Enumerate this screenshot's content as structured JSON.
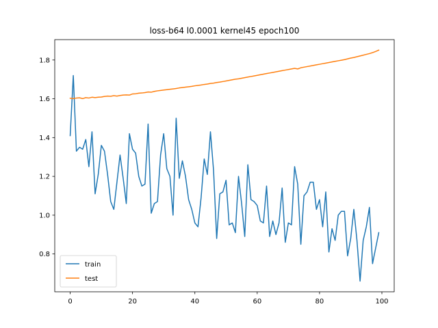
{
  "chart_data": {
    "type": "line",
    "title": "loss-b64 l0.0001 kernel45 epoch100",
    "xlabel": "",
    "ylabel": "",
    "xlim": [
      -4.95,
      103.95
    ],
    "ylim": [
      0.605,
      1.905
    ],
    "xticks": [
      0,
      20,
      40,
      60,
      80,
      100
    ],
    "yticks": [
      0.8,
      1.0,
      1.2,
      1.4,
      1.6,
      1.8
    ],
    "ytick_labels": [
      "0.8",
      "1.0",
      "1.2",
      "1.4",
      "1.6",
      "1.8"
    ],
    "grid": false,
    "legend": "lower-left",
    "x": [
      0,
      1,
      2,
      3,
      4,
      5,
      6,
      7,
      8,
      9,
      10,
      11,
      12,
      13,
      14,
      15,
      16,
      17,
      18,
      19,
      20,
      21,
      22,
      23,
      24,
      25,
      26,
      27,
      28,
      29,
      30,
      31,
      32,
      33,
      34,
      35,
      36,
      37,
      38,
      39,
      40,
      41,
      42,
      43,
      44,
      45,
      46,
      47,
      48,
      49,
      50,
      51,
      52,
      53,
      54,
      55,
      56,
      57,
      58,
      59,
      60,
      61,
      62,
      63,
      64,
      65,
      66,
      67,
      68,
      69,
      70,
      71,
      72,
      73,
      74,
      75,
      76,
      77,
      78,
      79,
      80,
      81,
      82,
      83,
      84,
      85,
      86,
      87,
      88,
      89,
      90,
      91,
      92,
      93,
      94,
      95,
      96,
      97,
      98,
      99
    ],
    "series": [
      {
        "name": "train",
        "color": "#1f77b4",
        "values": [
          1.41,
          1.72,
          1.33,
          1.35,
          1.34,
          1.39,
          1.25,
          1.43,
          1.11,
          1.21,
          1.36,
          1.33,
          1.21,
          1.07,
          1.03,
          1.17,
          1.31,
          1.19,
          1.06,
          1.42,
          1.34,
          1.32,
          1.2,
          1.15,
          1.16,
          1.47,
          1.01,
          1.06,
          1.07,
          1.31,
          1.42,
          1.24,
          1.2,
          1.0,
          1.5,
          1.19,
          1.28,
          1.2,
          1.08,
          1.03,
          0.96,
          0.94,
          1.09,
          1.29,
          1.21,
          1.43,
          1.23,
          0.88,
          1.11,
          1.12,
          1.18,
          0.95,
          0.96,
          0.91,
          1.2,
          1.06,
          0.89,
          1.26,
          1.08,
          1.07,
          1.05,
          0.97,
          0.96,
          1.15,
          0.89,
          0.97,
          0.9,
          0.96,
          1.14,
          0.86,
          0.96,
          0.95,
          1.25,
          1.16,
          0.85,
          1.1,
          1.12,
          1.17,
          1.17,
          1.03,
          1.08,
          0.94,
          1.12,
          0.81,
          0.93,
          0.87,
          1.0,
          1.02,
          1.02,
          0.79,
          0.88,
          1.03,
          0.87,
          0.66,
          0.87,
          0.94,
          1.04,
          0.75,
          0.83,
          0.91
        ]
      },
      {
        "name": "test",
        "color": "#ff7f0e",
        "values": [
          1.603,
          1.601,
          1.604,
          1.605,
          1.601,
          1.606,
          1.604,
          1.608,
          1.606,
          1.608,
          1.609,
          1.612,
          1.614,
          1.613,
          1.616,
          1.614,
          1.617,
          1.619,
          1.62,
          1.619,
          1.625,
          1.626,
          1.629,
          1.63,
          1.632,
          1.635,
          1.634,
          1.638,
          1.641,
          1.643,
          1.645,
          1.647,
          1.649,
          1.651,
          1.653,
          1.656,
          1.658,
          1.66,
          1.662,
          1.664,
          1.667,
          1.669,
          1.671,
          1.674,
          1.676,
          1.679,
          1.681,
          1.684,
          1.686,
          1.689,
          1.692,
          1.695,
          1.698,
          1.701,
          1.703,
          1.706,
          1.709,
          1.712,
          1.715,
          1.718,
          1.721,
          1.724,
          1.727,
          1.73,
          1.733,
          1.736,
          1.739,
          1.742,
          1.745,
          1.748,
          1.751,
          1.754,
          1.757,
          1.754,
          1.76,
          1.763,
          1.766,
          1.769,
          1.772,
          1.775,
          1.778,
          1.781,
          1.784,
          1.787,
          1.79,
          1.793,
          1.796,
          1.799,
          1.802,
          1.806,
          1.81,
          1.813,
          1.817,
          1.821,
          1.825,
          1.829,
          1.833,
          1.838,
          1.844,
          1.851
        ]
      }
    ]
  }
}
